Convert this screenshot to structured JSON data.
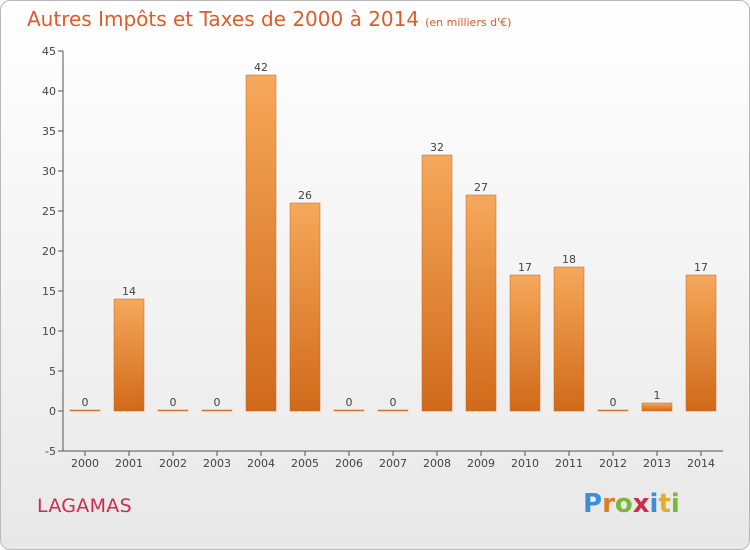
{
  "title": "Autres Impôts et Taxes de 2000 à 2014",
  "unit": "(en milliers d'€)",
  "commune": "LAGAMAS",
  "logo": {
    "letters": [
      {
        "ch": "P",
        "color": "#3a8fd8"
      },
      {
        "ch": "r",
        "color": "#e07b2a"
      },
      {
        "ch": "o",
        "color": "#7ab83a"
      },
      {
        "ch": "x",
        "color": "#d02a4e"
      },
      {
        "ch": "i",
        "color": "#3a8fd8"
      },
      {
        "ch": "t",
        "color": "#e0b02a"
      },
      {
        "ch": "i",
        "color": "#7ab83a"
      }
    ]
  },
  "colors": {
    "bar_light": "#f6a85a",
    "bar_dark": "#d06a1a",
    "title": "#e05a2a",
    "commune": "#d0284e"
  },
  "chart_data": {
    "type": "bar",
    "title": "Autres Impôts et Taxes de 2000 à 2014",
    "xlabel": "",
    "ylabel": "",
    "categories": [
      "2000",
      "2001",
      "2002",
      "2003",
      "2004",
      "2005",
      "2006",
      "2007",
      "2008",
      "2009",
      "2010",
      "2011",
      "2012",
      "2013",
      "2014"
    ],
    "values": [
      0,
      14,
      0,
      0,
      42,
      26,
      0,
      0,
      32,
      27,
      17,
      18,
      0,
      1,
      17
    ],
    "ylim": [
      -5,
      45
    ],
    "yticks": [
      -5,
      0,
      5,
      10,
      15,
      20,
      25,
      30,
      35,
      40,
      45
    ],
    "grid": false,
    "legend": "none"
  }
}
